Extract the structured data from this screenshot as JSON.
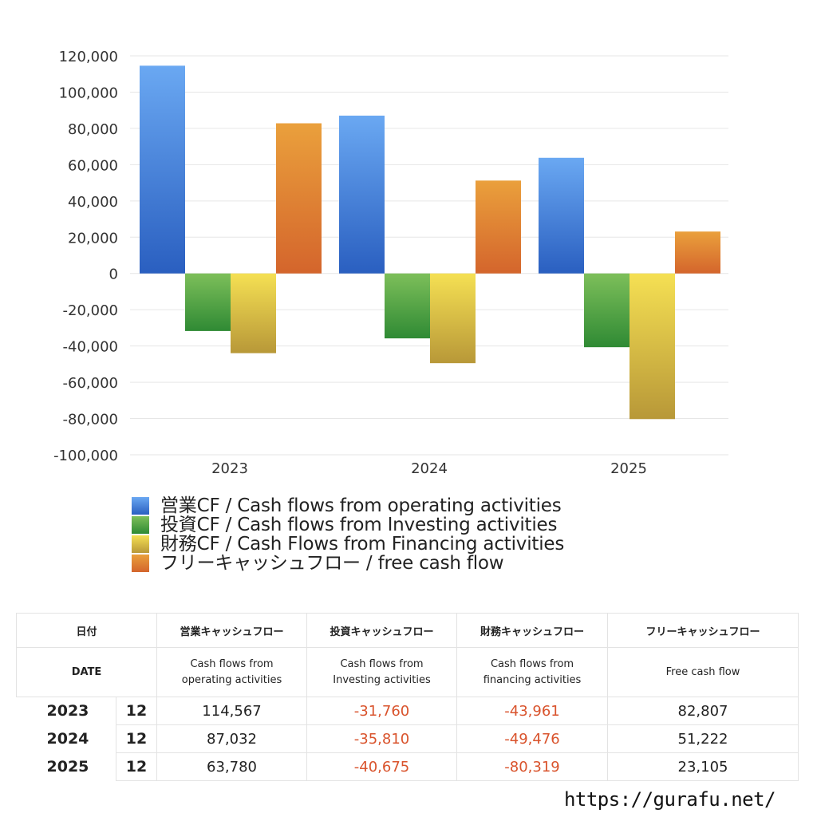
{
  "chart_data": {
    "type": "bar",
    "categories": [
      "2023",
      "2024",
      "2025"
    ],
    "ylim": [
      -100000,
      120000
    ],
    "yticks": [
      120000,
      100000,
      80000,
      60000,
      40000,
      20000,
      0,
      -20000,
      -40000,
      -60000,
      -80000,
      -100000
    ],
    "ytick_labels": [
      "120,000",
      "100,000",
      "80,000",
      "60,000",
      "40,000",
      "20,000",
      "0",
      "-20,000",
      "-40,000",
      "-60,000",
      "-80,000",
      "-100,000"
    ],
    "grid": true,
    "legend_position": "bottom",
    "series": [
      {
        "name": "営業CF / Cash flows from operating activities",
        "values": [
          114567,
          87032,
          63780
        ],
        "color_top": "#6aa8f2",
        "color_bottom": "#2a5fc0"
      },
      {
        "name": "投資CF / Cash flows from Investing activities",
        "values": [
          -31760,
          -35810,
          -40675
        ],
        "color_top": "#7dbf5a",
        "color_bottom": "#2f8a34"
      },
      {
        "name": "財務CF / Cash Flows from Financing activities",
        "values": [
          -43961,
          -49476,
          -80319
        ],
        "color_top": "#f5e053",
        "color_bottom": "#b89838"
      },
      {
        "name": "フリーキャッシュフロー / free cash flow",
        "values": [
          82807,
          51222,
          23105
        ],
        "color_top": "#eaa03c",
        "color_bottom": "#d4652c"
      }
    ]
  },
  "table": {
    "header_jp": [
      "日付",
      "営業キャッシュフロー",
      "投資キャッシュフロー",
      "財務キャッシュフロー",
      "フリーキャッシュフロー"
    ],
    "header_en": {
      "date": "DATE",
      "operating": [
        "Cash flows from",
        "operating activities"
      ],
      "investing": [
        "Cash flows from",
        "Investing activities"
      ],
      "financing": [
        "Cash flows from",
        "financing activities"
      ],
      "free": "Free cash flow"
    },
    "rows": [
      {
        "year": "2023",
        "month": "12",
        "operating": "114,567",
        "investing": "-31,760",
        "financing": "-43,961",
        "free": "82,807"
      },
      {
        "year": "2024",
        "month": "12",
        "operating": "87,032",
        "investing": "-35,810",
        "financing": "-49,476",
        "free": "51,222"
      },
      {
        "year": "2025",
        "month": "12",
        "operating": "63,780",
        "investing": "-40,675",
        "financing": "-80,319",
        "free": "23,105"
      }
    ]
  },
  "footer": {
    "url": "https://gurafu.net/"
  }
}
